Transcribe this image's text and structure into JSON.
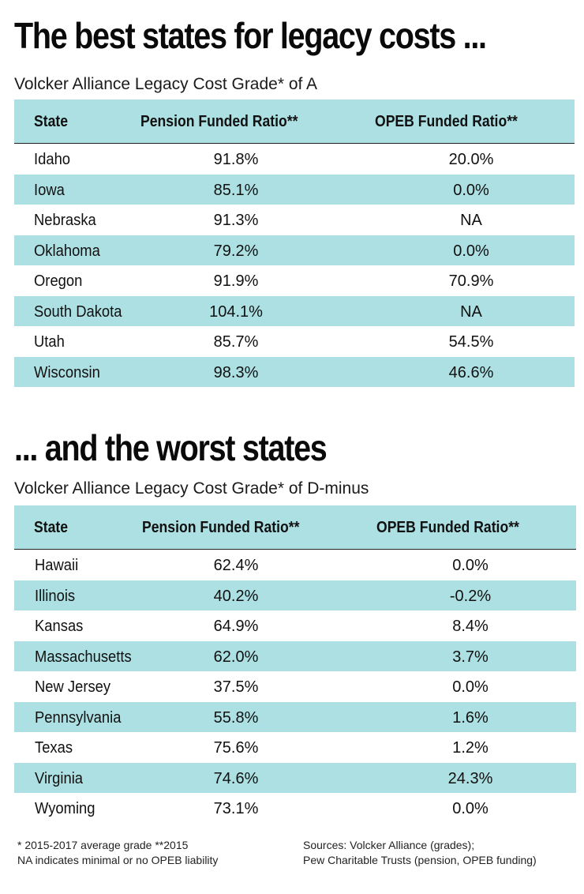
{
  "sections": [
    {
      "headline": "The best states for legacy costs ...",
      "subhead": "Volcker Alliance Legacy Cost Grade* of A",
      "columns": [
        "State",
        "Pension Funded Ratio**",
        "OPEB Funded Ratio**"
      ],
      "rows": [
        [
          "Idaho",
          "91.8%",
          "20.0%"
        ],
        [
          "Iowa",
          "85.1%",
          "0.0%"
        ],
        [
          "Nebraska",
          "91.3%",
          "NA"
        ],
        [
          "Oklahoma",
          "79.2%",
          "0.0%"
        ],
        [
          "Oregon",
          "91.9%",
          "70.9%"
        ],
        [
          "South Dakota",
          "104.1%",
          "NA"
        ],
        [
          "Utah",
          "85.7%",
          "54.5%"
        ],
        [
          "Wisconsin",
          "98.3%",
          "46.6%"
        ]
      ]
    },
    {
      "headline": "... and the worst states",
      "subhead": "Volcker Alliance Legacy Cost Grade* of D-minus",
      "columns": [
        "State",
        "Pension Funded Ratio**",
        "OPEB Funded Ratio**"
      ],
      "rows": [
        [
          "Hawaii",
          "62.4%",
          "0.0%"
        ],
        [
          "Illinois",
          "40.2%",
          "-0.2%"
        ],
        [
          "Kansas",
          "64.9%",
          "8.4%"
        ],
        [
          "Massachusetts",
          "62.0%",
          "3.7%"
        ],
        [
          "New Jersey",
          "37.5%",
          "0.0%"
        ],
        [
          "Pennsylvania",
          "55.8%",
          "1.6%"
        ],
        [
          "Texas",
          "75.6%",
          "1.2%"
        ],
        [
          "Virginia",
          "74.6%",
          "24.3%"
        ],
        [
          "Wyoming",
          "73.1%",
          "0.0%"
        ]
      ]
    }
  ],
  "footnotes": {
    "left": [
      "* 2015-2017 average grade  **2015",
      "NA indicates minimal or no OPEB liability"
    ],
    "right": [
      "Sources: Volcker Alliance (grades);",
      "Pew Charitable Trusts (pension, OPEB funding)"
    ]
  },
  "colors": {
    "row_highlight": "#ade0e3",
    "text": "#111111"
  }
}
